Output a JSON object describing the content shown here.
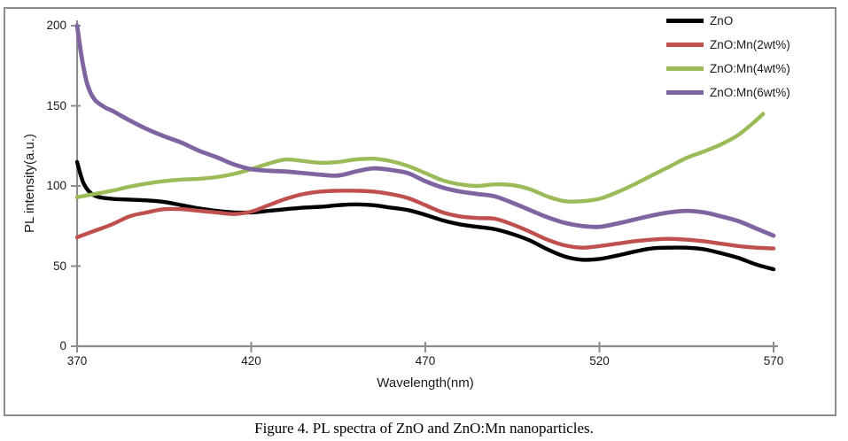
{
  "figure": {
    "caption": "Figure 4. PL spectra of ZnO and ZnO:Mn nanoparticles."
  },
  "chart_data": {
    "type": "line",
    "title": "",
    "xlabel": "Wavelength(nm)",
    "ylabel": "PL intensity(a.u.)",
    "xlim": [
      370,
      570
    ],
    "ylim": [
      0,
      200
    ],
    "xticks": [
      370,
      420,
      470,
      520,
      570
    ],
    "yticks": [
      0,
      50,
      100,
      150,
      200
    ],
    "grid": false,
    "legend_position": "top-right-inside",
    "axis_color": "#8c8c8c",
    "frame_color": "#8c8c8c",
    "series": [
      {
        "name": "ZnO",
        "color": "#000000",
        "x": [
          370,
          372,
          375,
          380,
          385,
          390,
          395,
          400,
          405,
          410,
          415,
          420,
          425,
          430,
          435,
          440,
          445,
          450,
          455,
          460,
          465,
          470,
          475,
          480,
          485,
          490,
          495,
          500,
          505,
          510,
          515,
          520,
          525,
          530,
          535,
          540,
          545,
          550,
          555,
          560,
          565,
          570
        ],
        "y": [
          115,
          101,
          94,
          92,
          91.5,
          91,
          90,
          88,
          86,
          84.5,
          83.5,
          83.5,
          84.5,
          85.5,
          86.5,
          87,
          88,
          88.5,
          88,
          86.5,
          85,
          82,
          78.5,
          76,
          74.5,
          73,
          70,
          66,
          60.5,
          56,
          54,
          54.5,
          56.5,
          59,
          61,
          61.5,
          61.5,
          60.5,
          58,
          55,
          51,
          48
        ]
      },
      {
        "name": "ZnO:Mn(2wt%)",
        "color": "#C0504D",
        "x": [
          370,
          375,
          380,
          385,
          390,
          395,
          400,
          405,
          410,
          415,
          420,
          425,
          430,
          435,
          440,
          445,
          450,
          455,
          460,
          465,
          470,
          475,
          480,
          485,
          490,
          495,
          500,
          505,
          510,
          515,
          520,
          525,
          530,
          535,
          540,
          545,
          550,
          555,
          560,
          565,
          570
        ],
        "y": [
          68,
          72,
          76,
          81,
          83.5,
          85.5,
          85.5,
          84.5,
          83.5,
          82.5,
          84,
          88,
          92,
          95,
          96.5,
          97,
          97,
          96.5,
          95,
          92.5,
          88,
          83.5,
          81,
          80,
          79.5,
          76,
          71.5,
          66.5,
          63,
          61.5,
          62.5,
          64,
          65.5,
          66.5,
          67,
          66.5,
          65.5,
          64,
          62.5,
          61.5,
          61
        ]
      },
      {
        "name": "ZnO:Mn(4wt%)",
        "color": "#9BBB59",
        "x": [
          370,
          375,
          380,
          385,
          390,
          395,
          400,
          405,
          410,
          415,
          420,
          425,
          430,
          435,
          440,
          445,
          450,
          455,
          460,
          465,
          470,
          475,
          480,
          485,
          490,
          495,
          500,
          505,
          510,
          515,
          520,
          525,
          530,
          535,
          540,
          545,
          550,
          555,
          560,
          565,
          567
        ],
        "y": [
          93,
          95,
          97,
          99.5,
          101.5,
          103,
          104,
          104.5,
          105.5,
          107.5,
          110.5,
          114,
          116.5,
          115.5,
          114.5,
          115,
          116.5,
          117,
          115.5,
          112.5,
          108,
          103.5,
          101,
          100,
          101,
          100.5,
          98,
          93.5,
          90.5,
          90.5,
          92,
          96,
          101,
          106.5,
          112,
          117.5,
          121.5,
          126,
          132,
          141,
          145
        ]
      },
      {
        "name": "ZnO:Mn(6wt%)",
        "color": "#8064A2",
        "x": [
          370,
          371.5,
          373,
          375,
          378,
          380,
          385,
          390,
          395,
          400,
          405,
          410,
          415,
          420,
          425,
          430,
          435,
          440,
          445,
          450,
          455,
          460,
          465,
          470,
          475,
          480,
          485,
          490,
          495,
          500,
          505,
          510,
          515,
          520,
          525,
          530,
          535,
          540,
          545,
          550,
          555,
          560,
          565,
          570
        ],
        "y": [
          200,
          178,
          163,
          154,
          149,
          147,
          141,
          135.5,
          131,
          127,
          122,
          118,
          113.5,
          110.5,
          109.5,
          109,
          108,
          107,
          106.5,
          109,
          111,
          110,
          108,
          103,
          99,
          96.5,
          95,
          93.5,
          89.5,
          85,
          80.5,
          77,
          75,
          74.5,
          76.5,
          79,
          81.5,
          83.5,
          84.5,
          83.5,
          81,
          78,
          73.5,
          69
        ]
      }
    ]
  }
}
